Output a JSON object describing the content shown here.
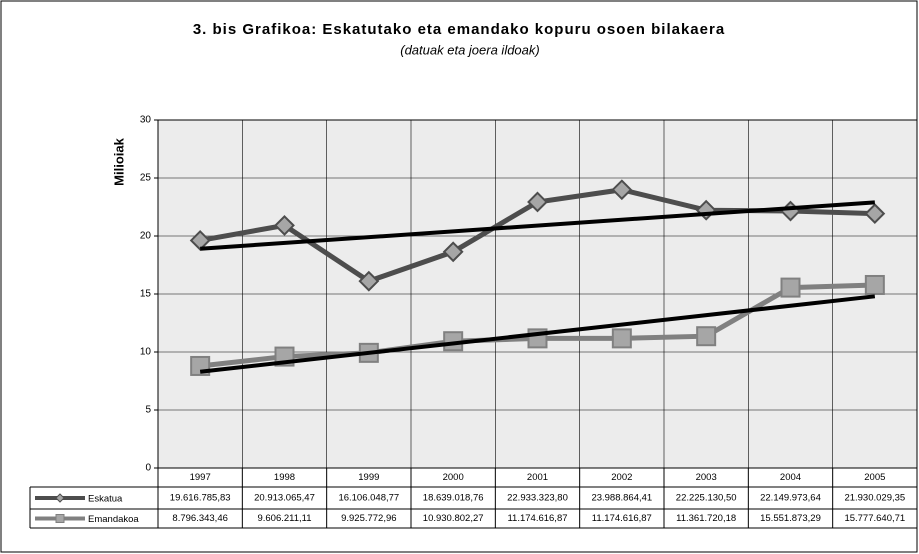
{
  "chart_data": {
    "type": "line",
    "title": "3. bis Grafikoa: Eskatutako eta emandako kopuru osoen bilakaera",
    "subtitle": "(datuak eta joera ildoak)",
    "y_label": "Milioiak",
    "categories": [
      "1997",
      "1998",
      "1999",
      "2000",
      "2001",
      "2002",
      "2003",
      "2004",
      "2005"
    ],
    "ylim": [
      0,
      30
    ],
    "yticks": [
      0,
      5,
      10,
      15,
      20,
      25,
      30
    ],
    "grid": true,
    "series": [
      {
        "name": "Eskatua",
        "color": "#4d4d4d",
        "marker": "diamond",
        "values": [
          19.61678583,
          20.91306547,
          16.10604877,
          18.63901876,
          22.9333238,
          23.98886441,
          22.2251305,
          22.14997364,
          21.93002935
        ],
        "value_labels": [
          "19.616.785,83",
          "20.913.065,47",
          "16.106.048,77",
          "18.639.018,76",
          "22.933.323,80",
          "23.988.864,41",
          "22.225.130,50",
          "22.149.973,64",
          "21.930.029,35"
        ],
        "trend": [
          18.9,
          22.9
        ]
      },
      {
        "name": "Emandakoa",
        "color": "#808080",
        "marker": "square",
        "values": [
          8.79634346,
          9.60621111,
          9.92577296,
          10.93080227,
          11.17461687,
          11.17461687,
          11.36172018,
          15.55187329,
          15.77764071
        ],
        "value_labels": [
          "8.796.343,46",
          "9.606.211,11",
          "9.925.772,96",
          "10.930.802,27",
          "11.174.616,87",
          "11.174.616,87",
          "11.361.720,18",
          "15.551.873,29",
          "15.777.640,71"
        ],
        "trend": [
          8.3,
          14.8
        ]
      }
    ]
  }
}
